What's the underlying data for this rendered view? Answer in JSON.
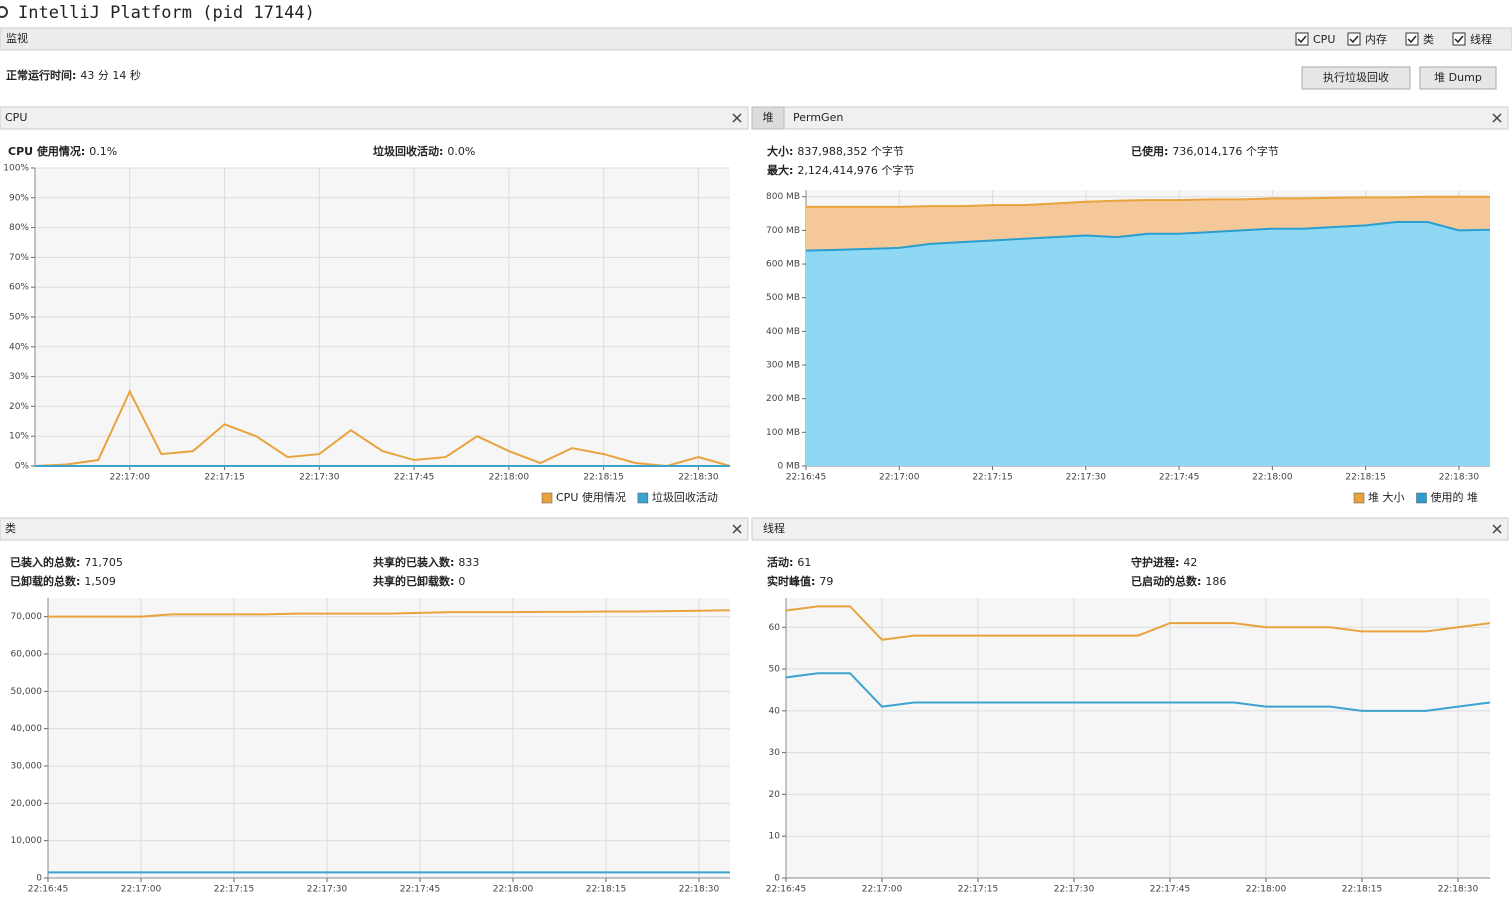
{
  "window_title": "IntelliJ Platform (pid 17144)",
  "tab": "监视",
  "checkboxes": [
    "CPU",
    "内存",
    "类",
    "线程"
  ],
  "uptime": {
    "label": "正常运行时间:",
    "value": "43 分 14 秒"
  },
  "buttons": [
    "执行垃圾回收",
    "堆 Dump"
  ],
  "panels": [
    {
      "title": "CPU",
      "stats": [
        {
          "label": "CPU 使用情况:",
          "value": "0.1%"
        },
        {
          "label": "垃圾回收活动:",
          "value": "0.0%"
        }
      ]
    },
    {
      "tabs": [
        "堆",
        "PermGen"
      ],
      "stats": [
        {
          "label": "大小:",
          "value": "837,988,352 个字节"
        },
        {
          "label": "已使用:",
          "value": "736,014,176 个字节"
        },
        {
          "label": "最大:",
          "value": "2,124,414,976 个字节"
        }
      ]
    },
    {
      "title": "类",
      "stats": [
        {
          "label": "已装入的总数:",
          "value": "71,705"
        },
        {
          "label": "共享的已装入数:",
          "value": "833"
        },
        {
          "label": "已卸载的总数:",
          "value": "1,509"
        },
        {
          "label": "共享的已卸载数:",
          "value": "0"
        }
      ]
    },
    {
      "title": "线程",
      "stats": [
        {
          "label": "活动:",
          "value": "61"
        },
        {
          "label": "守护进程:",
          "value": "42"
        },
        {
          "label": "实时峰值:",
          "value": "79"
        },
        {
          "label": "已启动的总数:",
          "value": "186"
        }
      ]
    }
  ],
  "chart_data": [
    {
      "type": "line",
      "grid": true,
      "legend": "bottom-right",
      "x": [
        "22:16:45",
        "22:16:50",
        "22:16:55",
        "22:17:00",
        "22:17:05",
        "22:17:10",
        "22:17:15",
        "22:17:20",
        "22:17:25",
        "22:17:30",
        "22:17:35",
        "22:17:40",
        "22:17:45",
        "22:17:50",
        "22:17:55",
        "22:18:00",
        "22:18:05",
        "22:18:10",
        "22:18:15",
        "22:18:20",
        "22:18:25",
        "22:18:30",
        "22:18:35"
      ],
      "xlim": [
        "22:16:45",
        "22:18:35"
      ],
      "xticks": [
        "22:17:00",
        "22:17:15",
        "22:17:30",
        "22:17:45",
        "22:18:00",
        "22:18:15",
        "22:18:30"
      ],
      "ylim": [
        0,
        100
      ],
      "yticks": [
        {
          "value": 0,
          "label": "0%"
        },
        {
          "value": 10,
          "label": "10%"
        },
        {
          "value": 20,
          "label": "20%"
        },
        {
          "value": 30,
          "label": "30%"
        },
        {
          "value": 40,
          "label": "40%"
        },
        {
          "value": 50,
          "label": "50%"
        },
        {
          "value": 60,
          "label": "60%"
        },
        {
          "value": 70,
          "label": "70%"
        },
        {
          "value": 80,
          "label": "80%"
        },
        {
          "value": 90,
          "label": "90%"
        },
        {
          "value": 100,
          "label": "100%"
        }
      ],
      "series": [
        {
          "name": "CPU 使用情况",
          "color": "#e8a33d",
          "values": [
            0,
            0.5,
            2,
            25,
            4,
            5,
            14,
            10,
            3,
            4,
            12,
            5,
            2,
            3,
            10,
            5,
            1,
            6,
            4,
            1,
            0,
            3,
            0
          ]
        },
        {
          "name": "垃圾回收活动",
          "color": "#3ba3d0",
          "values": [
            0,
            0,
            0,
            0,
            0,
            0,
            0,
            0,
            0,
            0,
            0,
            0,
            0,
            0,
            0,
            0,
            0,
            0,
            0,
            0,
            0,
            0,
            0
          ]
        }
      ]
    },
    {
      "type": "area",
      "grid": true,
      "legend": "bottom-right",
      "x": [
        "22:16:45",
        "22:16:50",
        "22:16:55",
        "22:17:00",
        "22:17:05",
        "22:17:10",
        "22:17:15",
        "22:17:20",
        "22:17:25",
        "22:17:30",
        "22:17:35",
        "22:17:40",
        "22:17:45",
        "22:17:50",
        "22:17:55",
        "22:18:00",
        "22:18:05",
        "22:18:10",
        "22:18:15",
        "22:18:20",
        "22:18:25",
        "22:18:30",
        "22:18:35"
      ],
      "xlim": [
        "22:16:45",
        "22:18:35"
      ],
      "xticks": [
        "22:16:45",
        "22:17:00",
        "22:17:15",
        "22:17:30",
        "22:17:45",
        "22:18:00",
        "22:18:15",
        "22:18:30"
      ],
      "ylim": [
        0,
        820
      ],
      "yticks": [
        {
          "value": 0,
          "label": "0 MB"
        },
        {
          "value": 100,
          "label": "100 MB"
        },
        {
          "value": 200,
          "label": "200 MB"
        },
        {
          "value": 300,
          "label": "300 MB"
        },
        {
          "value": 400,
          "label": "400 MB"
        },
        {
          "value": 500,
          "label": "500 MB"
        },
        {
          "value": 600,
          "label": "600 MB"
        },
        {
          "value": 700,
          "label": "700 MB"
        },
        {
          "value": 800,
          "label": "800 MB"
        }
      ],
      "series": [
        {
          "name": "堆 大小",
          "color": "#e8a33d",
          "fill": "#f5c89a",
          "values": [
            770,
            770,
            770,
            770,
            772,
            772,
            775,
            775,
            780,
            785,
            788,
            790,
            790,
            792,
            792,
            795,
            795,
            797,
            798,
            798,
            800,
            800,
            800
          ]
        },
        {
          "name": "使用的 堆",
          "color": "#2a9fcf",
          "fill": "#8fd8f4",
          "values": [
            640,
            642,
            645,
            648,
            660,
            665,
            670,
            675,
            680,
            685,
            680,
            690,
            690,
            695,
            700,
            705,
            705,
            710,
            715,
            725,
            725,
            700,
            702
          ]
        }
      ]
    },
    {
      "type": "line",
      "grid": true,
      "x": [
        "22:16:45",
        "22:16:50",
        "22:16:55",
        "22:17:00",
        "22:17:05",
        "22:17:10",
        "22:17:15",
        "22:17:20",
        "22:17:25",
        "22:17:30",
        "22:17:35",
        "22:17:40",
        "22:17:45",
        "22:17:50",
        "22:17:55",
        "22:18:00",
        "22:18:05",
        "22:18:10",
        "22:18:15",
        "22:18:20",
        "22:18:25",
        "22:18:30",
        "22:18:35"
      ],
      "xlim": [
        "22:16:45",
        "22:18:35"
      ],
      "xticks": [
        "22:16:45",
        "22:17:00",
        "22:17:15",
        "22:17:30",
        "22:17:45",
        "22:18:00",
        "22:18:15",
        "22:18:30"
      ],
      "ylim": [
        0,
        75000
      ],
      "yticks": [
        0,
        {
          "value": 10000,
          "label": "10,000"
        },
        {
          "value": 20000,
          "label": "20,000"
        },
        {
          "value": 30000,
          "label": "30,000"
        },
        {
          "value": 40000,
          "label": "40,000"
        },
        {
          "value": 50000,
          "label": "50,000"
        },
        {
          "value": 60000,
          "label": "60,000"
        },
        {
          "value": 70000,
          "label": "70,000"
        }
      ],
      "series": [
        {
          "color": "#e8a33d",
          "values": [
            70000,
            70000,
            70000,
            70000,
            70600,
            70600,
            70600,
            70600,
            70800,
            70800,
            70800,
            70800,
            71000,
            71200,
            71200,
            71200,
            71300,
            71300,
            71400,
            71400,
            71500,
            71600,
            71705
          ]
        },
        {
          "color": "#3ba3d0",
          "values": [
            1500,
            1500,
            1500,
            1500,
            1500,
            1500,
            1500,
            1500,
            1500,
            1500,
            1500,
            1500,
            1500,
            1500,
            1500,
            1500,
            1500,
            1500,
            1500,
            1500,
            1500,
            1500,
            1509
          ]
        }
      ]
    },
    {
      "type": "line",
      "grid": true,
      "x": [
        "22:16:45",
        "22:16:50",
        "22:16:55",
        "22:17:00",
        "22:17:05",
        "22:17:10",
        "22:17:15",
        "22:17:20",
        "22:17:25",
        "22:17:30",
        "22:17:35",
        "22:17:40",
        "22:17:45",
        "22:17:50",
        "22:17:55",
        "22:18:00",
        "22:18:05",
        "22:18:10",
        "22:18:15",
        "22:18:20",
        "22:18:25",
        "22:18:30",
        "22:18:35"
      ],
      "xlim": [
        "22:16:45",
        "22:18:35"
      ],
      "xticks": [
        "22:16:45",
        "22:17:00",
        "22:17:15",
        "22:17:30",
        "22:17:45",
        "22:18:00",
        "22:18:15",
        "22:18:30"
      ],
      "ylim": [
        0,
        67
      ],
      "yticks": [
        0,
        10,
        20,
        30,
        40,
        50,
        60
      ],
      "series": [
        {
          "color": "#e8a33d",
          "values": [
            64,
            65,
            65,
            57,
            58,
            58,
            58,
            58,
            58,
            58,
            58,
            58,
            61,
            61,
            61,
            60,
            60,
            60,
            59,
            59,
            59,
            60,
            61
          ]
        },
        {
          "color": "#3ba3d0",
          "values": [
            48,
            49,
            49,
            41,
            42,
            42,
            42,
            42,
            42,
            42,
            42,
            42,
            42,
            42,
            42,
            41,
            41,
            41,
            40,
            40,
            40,
            41,
            42
          ]
        }
      ]
    }
  ]
}
